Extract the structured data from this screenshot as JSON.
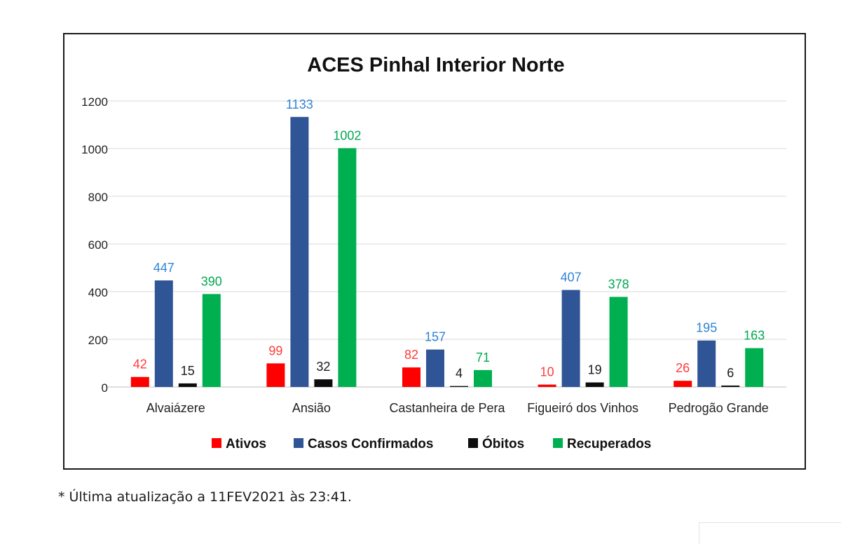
{
  "footnote": "* Última atualização a 11FEV2021 às 23:41.",
  "chart_data": {
    "type": "bar",
    "title": "ACES Pinhal Interior Norte",
    "xlabel": "",
    "ylabel": "",
    "ylim": [
      0,
      1200
    ],
    "yticks": [
      0,
      200,
      400,
      600,
      800,
      1000,
      1200
    ],
    "grid": true,
    "legend_position": "bottom",
    "categories": [
      "Alvaiázere",
      "Ansião",
      "Castanheira de Pera",
      "Figueiró dos Vinhos",
      "Pedrogão Grande"
    ],
    "series": [
      {
        "name": "Ativos",
        "color": "#ff0000",
        "label_color": "#ff3b3b",
        "values": [
          42,
          99,
          82,
          10,
          26
        ]
      },
      {
        "name": "Casos Confirmados",
        "color": "#2f5597",
        "label_color": "#2e83d6",
        "values": [
          447,
          1133,
          157,
          407,
          195
        ]
      },
      {
        "name": "Óbitos",
        "color": "#0d0d0d",
        "label_color": "#1a1a1a",
        "values": [
          15,
          32,
          4,
          19,
          6
        ]
      },
      {
        "name": "Recuperados",
        "color": "#00b050",
        "label_color": "#00a94f",
        "values": [
          390,
          1002,
          71,
          378,
          163
        ]
      }
    ]
  }
}
